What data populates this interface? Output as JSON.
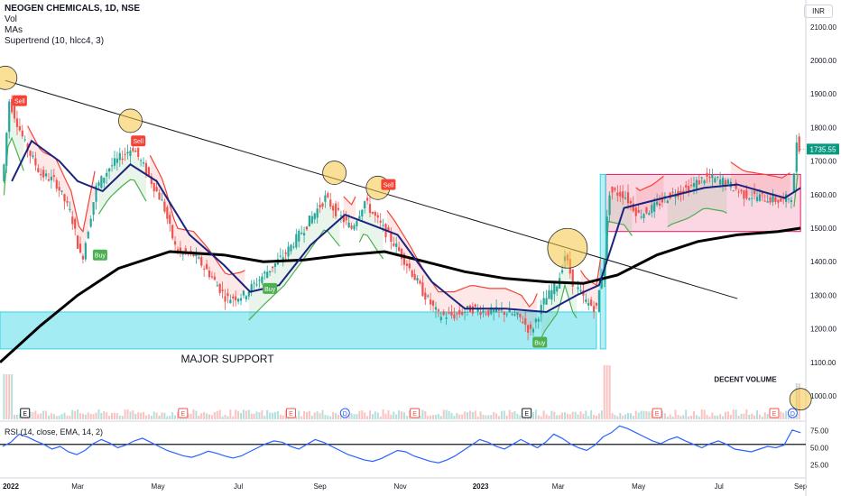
{
  "header": {
    "symbol_line": "NEOGEN CHEMICALS, 1D, NSE",
    "indicators": [
      "Vol",
      "MAs",
      "Supertrend (10, hlcc4, 3)"
    ],
    "currency": "INR"
  },
  "rsi_label": "RSI (14, close, EMA, 14, 2)",
  "colors": {
    "up": "#26a69a",
    "down": "#ef5350",
    "ma_short": "#1a237e",
    "ma_long": "#000000",
    "supertrend_up": "#4caf50",
    "supertrend_down": "#f44336",
    "support_zone": "#33d4e6",
    "range_box": "#e91e63",
    "rsi_line": "#2962ff",
    "price_badge": "#089981",
    "circle": "#f5c542"
  },
  "chart_data": [
    {
      "type": "candlestick",
      "x_axis": {
        "ticks": [
          "2022",
          "Mar",
          "May",
          "Jul",
          "Sep",
          "Nov",
          "2023",
          "Mar",
          "May",
          "Jul",
          "Sep"
        ],
        "range": [
          "2022-01-01",
          "2023-09-05"
        ]
      },
      "y_axis": {
        "ticks": [
          1000,
          1100,
          1200,
          1300,
          1400,
          1500,
          1600,
          1700,
          1800,
          1900,
          2000,
          2100
        ],
        "range": [
          930,
          2180
        ],
        "side": "right"
      },
      "last_price": "1735.55",
      "close_path": [
        [
          "2022-01-03",
          1640
        ],
        [
          "2022-01-08",
          1880
        ],
        [
          "2022-01-20",
          1750
        ],
        [
          "2022-02-01",
          1660
        ],
        [
          "2022-02-12",
          1640
        ],
        [
          "2022-02-24",
          1540
        ],
        [
          "2022-03-04",
          1400
        ],
        [
          "2022-03-15",
          1620
        ],
        [
          "2022-03-25",
          1680
        ],
        [
          "2022-04-05",
          1720
        ],
        [
          "2022-04-12",
          1740
        ],
        [
          "2022-04-22",
          1670
        ],
        [
          "2022-05-05",
          1570
        ],
        [
          "2022-05-15",
          1430
        ],
        [
          "2022-05-28",
          1420
        ],
        [
          "2022-06-08",
          1370
        ],
        [
          "2022-06-22",
          1290
        ],
        [
          "2022-07-05",
          1300
        ],
        [
          "2022-07-20",
          1360
        ],
        [
          "2022-08-05",
          1420
        ],
        [
          "2022-08-20",
          1500
        ],
        [
          "2022-09-05",
          1590
        ],
        [
          "2022-09-15",
          1540
        ],
        [
          "2022-09-25",
          1500
        ],
        [
          "2022-10-05",
          1580
        ],
        [
          "2022-10-15",
          1520
        ],
        [
          "2022-10-28",
          1450
        ],
        [
          "2022-11-08",
          1380
        ],
        [
          "2022-11-18",
          1310
        ],
        [
          "2022-11-30",
          1240
        ],
        [
          "2022-12-12",
          1240
        ],
        [
          "2022-12-25",
          1260
        ],
        [
          "2023-01-08",
          1250
        ],
        [
          "2023-01-20",
          1250
        ],
        [
          "2023-02-01",
          1230
        ],
        [
          "2023-02-08",
          1190
        ],
        [
          "2023-02-18",
          1280
        ],
        [
          "2023-03-01",
          1340
        ],
        [
          "2023-03-06",
          1420
        ],
        [
          "2023-03-12",
          1340
        ],
        [
          "2023-03-22",
          1280
        ],
        [
          "2023-03-30",
          1260
        ],
        [
          "2023-04-06",
          1440
        ],
        [
          "2023-04-08",
          1610
        ],
        [
          "2023-04-20",
          1600
        ],
        [
          "2023-05-01",
          1540
        ],
        [
          "2023-05-12",
          1560
        ],
        [
          "2023-05-25",
          1600
        ],
        [
          "2023-06-08",
          1620
        ],
        [
          "2023-06-20",
          1650
        ],
        [
          "2023-07-05",
          1640
        ],
        [
          "2023-07-20",
          1600
        ],
        [
          "2023-08-05",
          1590
        ],
        [
          "2023-08-18",
          1580
        ],
        [
          "2023-08-26",
          1600
        ],
        [
          "2023-08-29",
          1760
        ],
        [
          "2023-09-01",
          1735
        ]
      ],
      "ma_short_path": [
        [
          "2022-01-10",
          1640
        ],
        [
          "2022-01-25",
          1760
        ],
        [
          "2022-02-15",
          1700
        ],
        [
          "2022-03-01",
          1640
        ],
        [
          "2022-03-20",
          1610
        ],
        [
          "2022-04-10",
          1690
        ],
        [
          "2022-04-30",
          1640
        ],
        [
          "2022-05-25",
          1480
        ],
        [
          "2022-06-20",
          1390
        ],
        [
          "2022-07-10",
          1310
        ],
        [
          "2022-08-01",
          1330
        ],
        [
          "2022-08-25",
          1450
        ],
        [
          "2022-09-20",
          1540
        ],
        [
          "2022-10-10",
          1510
        ],
        [
          "2022-10-30",
          1480
        ],
        [
          "2022-11-25",
          1340
        ],
        [
          "2022-12-20",
          1260
        ],
        [
          "2023-01-20",
          1260
        ],
        [
          "2023-02-20",
          1250
        ],
        [
          "2023-03-15",
          1300
        ],
        [
          "2023-04-01",
          1330
        ],
        [
          "2023-04-20",
          1560
        ],
        [
          "2023-05-20",
          1590
        ],
        [
          "2023-06-20",
          1620
        ],
        [
          "2023-07-15",
          1630
        ],
        [
          "2023-08-20",
          1590
        ],
        [
          "2023-09-01",
          1620
        ]
      ],
      "ma_long_path": [
        [
          "2022-01-01",
          1100
        ],
        [
          "2022-02-01",
          1210
        ],
        [
          "2022-03-01",
          1300
        ],
        [
          "2022-04-01",
          1380
        ],
        [
          "2022-05-10",
          1430
        ],
        [
          "2022-06-20",
          1420
        ],
        [
          "2022-07-20",
          1400
        ],
        [
          "2022-08-20",
          1405
        ],
        [
          "2022-09-20",
          1420
        ],
        [
          "2022-10-20",
          1430
        ],
        [
          "2022-11-20",
          1400
        ],
        [
          "2022-12-20",
          1370
        ],
        [
          "2023-01-20",
          1350
        ],
        [
          "2023-02-20",
          1340
        ],
        [
          "2023-03-20",
          1335
        ],
        [
          "2023-04-15",
          1360
        ],
        [
          "2023-05-15",
          1420
        ],
        [
          "2023-06-15",
          1460
        ],
        [
          "2023-07-15",
          1480
        ],
        [
          "2023-08-15",
          1490
        ],
        [
          "2023-09-01",
          1500
        ]
      ],
      "trendline": [
        [
          "2022-01-05",
          1940
        ],
        [
          "2023-07-15",
          1290
        ]
      ],
      "zones": [
        {
          "label": "MAJOR SUPPORT",
          "x": [
            "2022-01-01",
            "2023-03-30"
          ],
          "y": [
            1140,
            1250
          ]
        },
        {
          "label": "",
          "x": [
            "2023-04-06",
            "2023-09-01"
          ],
          "y": [
            1490,
            1660
          ]
        }
      ],
      "signals": [
        {
          "label": "Sell",
          "date": "2022-01-16",
          "price": 1880
        },
        {
          "label": "Sell",
          "date": "2022-04-16",
          "price": 1760
        },
        {
          "label": "Buy",
          "date": "2022-03-18",
          "price": 1420
        },
        {
          "label": "Buy",
          "date": "2022-07-25",
          "price": 1320
        },
        {
          "label": "Sell",
          "date": "2022-10-23",
          "price": 1630
        },
        {
          "label": "Buy",
          "date": "2023-02-15",
          "price": 1160
        }
      ],
      "annotations": [
        {
          "text": "MAJOR SUPPORT"
        },
        {
          "text": "DECENT VOLUME"
        }
      ],
      "circled_points": [
        [
          "2022-01-05",
          1948
        ],
        [
          "2022-04-10",
          1820
        ],
        [
          "2022-09-12",
          1665
        ],
        [
          "2022-10-15",
          1620
        ],
        [
          "2023-03-08",
          1440
        ]
      ],
      "event_markers": [
        {
          "date": "2022-01-20",
          "label": "E"
        },
        {
          "date": "2022-05-20",
          "label": "E"
        },
        {
          "date": "2022-08-10",
          "label": "E"
        },
        {
          "date": "2022-09-20",
          "label": "D"
        },
        {
          "date": "2022-11-12",
          "label": "E"
        },
        {
          "date": "2023-02-05",
          "label": "E"
        },
        {
          "date": "2023-05-15",
          "label": "E"
        },
        {
          "date": "2023-08-12",
          "label": "E"
        },
        {
          "date": "2023-08-26",
          "label": "D"
        }
      ]
    },
    {
      "type": "line",
      "title": "RSI (14, close, EMA, 14, 2)",
      "y_axis": {
        "ticks": [
          25,
          50,
          75
        ],
        "range": [
          15,
          85
        ]
      },
      "reference_level": 55,
      "series": [
        {
          "values": [
            52,
            58,
            70,
            66,
            60,
            55,
            48,
            52,
            44,
            40,
            46,
            56,
            62,
            57,
            50,
            54,
            60,
            64,
            58,
            52,
            46,
            42,
            38,
            36,
            40,
            45,
            42,
            38,
            35,
            38,
            44,
            50,
            56,
            60,
            58,
            52,
            48,
            55,
            62,
            58,
            52,
            46,
            40,
            36,
            32,
            30,
            34,
            40,
            46,
            44,
            38,
            34,
            30,
            28,
            32,
            38,
            46,
            54,
            62,
            58,
            52,
            48,
            55,
            62,
            56,
            50,
            58,
            70,
            64,
            56,
            50,
            46,
            54,
            66,
            72,
            82,
            78,
            72,
            66,
            60,
            56,
            62,
            66,
            60,
            55,
            50,
            56,
            60,
            55,
            48,
            46,
            44,
            48,
            52,
            50,
            54,
            76,
            72
          ]
        }
      ]
    }
  ]
}
